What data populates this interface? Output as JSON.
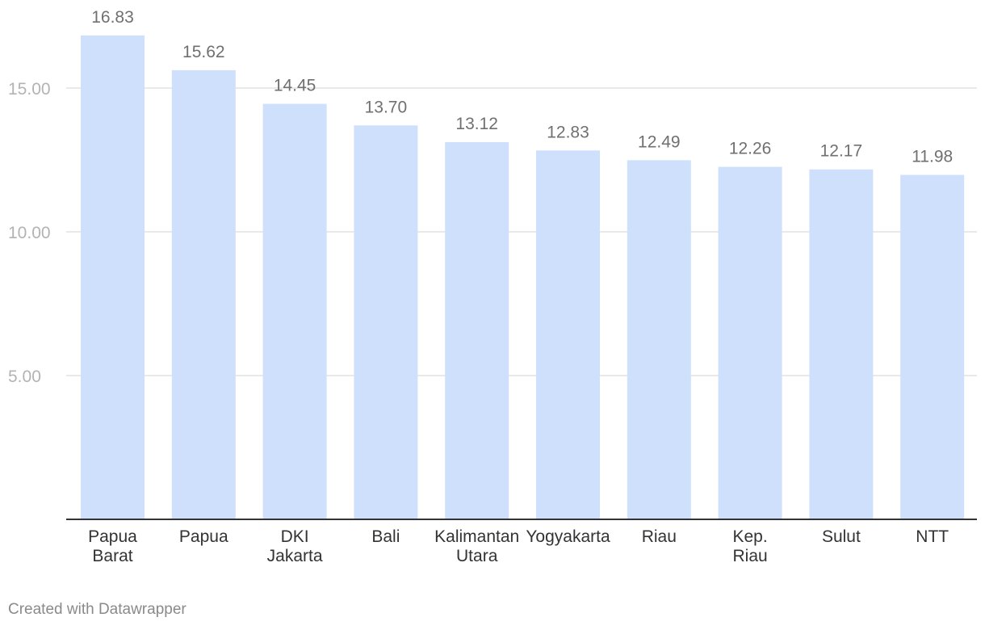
{
  "chart_data": {
    "type": "bar",
    "categories": [
      [
        "Papua",
        "Barat"
      ],
      [
        "Papua"
      ],
      [
        "DKI",
        "Jakarta"
      ],
      [
        "Bali"
      ],
      [
        "Kalimantan",
        "Utara"
      ],
      [
        "Yogyakarta"
      ],
      [
        "Riau"
      ],
      [
        "Kep.",
        "Riau"
      ],
      [
        "Sulut"
      ],
      [
        "NTT"
      ]
    ],
    "values": [
      16.83,
      15.62,
      14.45,
      13.7,
      13.12,
      12.83,
      12.49,
      12.26,
      12.17,
      11.98
    ],
    "value_labels": [
      "16.83",
      "15.62",
      "14.45",
      "13.70",
      "13.12",
      "12.83",
      "12.49",
      "12.26",
      "12.17",
      "11.98"
    ],
    "yticks": [
      5,
      10,
      15
    ],
    "ytick_labels": [
      "5.00",
      "10.00",
      "15.00"
    ],
    "ylim": [
      0,
      18
    ],
    "grid": true,
    "bar_color": "#cfe0fc",
    "title": "",
    "xlabel": "",
    "ylabel": ""
  },
  "footer": {
    "credit": "Created with Datawrapper"
  }
}
